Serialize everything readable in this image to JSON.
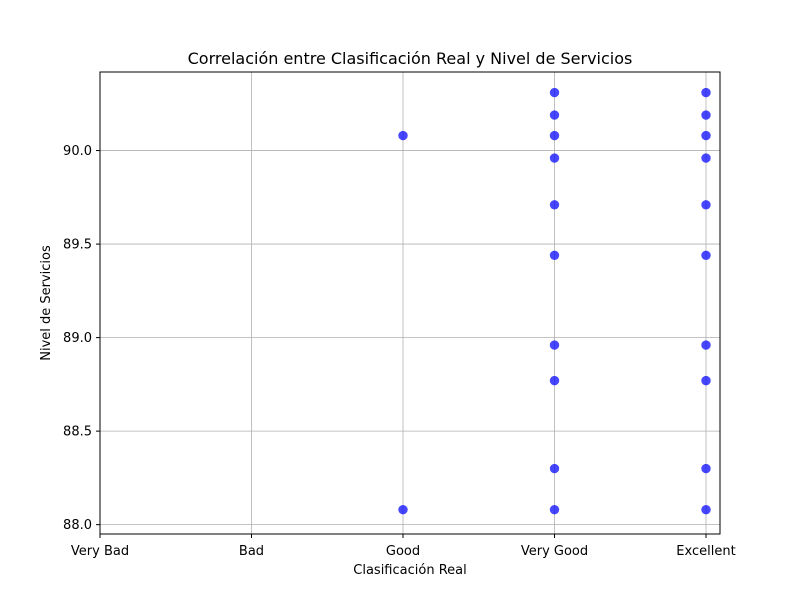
{
  "chart_data": {
    "type": "scatter",
    "title": "Correlación entre Clasificación Real y Nivel de Servicios",
    "xlabel": "Clasificación Real",
    "ylabel": "Nivel de Servicios",
    "categories": [
      "Very Bad",
      "Bad",
      "Good",
      "Very Good",
      "Excellent"
    ],
    "y_ticks": [
      "88.0",
      "88.5",
      "89.0",
      "89.5",
      "90.0"
    ],
    "ylim": [
      87.95,
      90.42
    ],
    "grid": true,
    "marker_color": "#0000ff",
    "points": [
      {
        "x": "Good",
        "y": 90.08
      },
      {
        "x": "Good",
        "y": 88.08
      },
      {
        "x": "Very Good",
        "y": 90.31
      },
      {
        "x": "Very Good",
        "y": 90.19
      },
      {
        "x": "Very Good",
        "y": 90.08
      },
      {
        "x": "Very Good",
        "y": 89.96
      },
      {
        "x": "Very Good",
        "y": 89.71
      },
      {
        "x": "Very Good",
        "y": 89.44
      },
      {
        "x": "Very Good",
        "y": 88.96
      },
      {
        "x": "Very Good",
        "y": 88.77
      },
      {
        "x": "Very Good",
        "y": 88.3
      },
      {
        "x": "Very Good",
        "y": 88.08
      },
      {
        "x": "Excellent",
        "y": 90.31
      },
      {
        "x": "Excellent",
        "y": 90.19
      },
      {
        "x": "Excellent",
        "y": 90.08
      },
      {
        "x": "Excellent",
        "y": 89.96
      },
      {
        "x": "Excellent",
        "y": 89.71
      },
      {
        "x": "Excellent",
        "y": 89.44
      },
      {
        "x": "Excellent",
        "y": 88.96
      },
      {
        "x": "Excellent",
        "y": 88.77
      },
      {
        "x": "Excellent",
        "y": 88.3
      },
      {
        "x": "Excellent",
        "y": 88.08
      }
    ]
  }
}
